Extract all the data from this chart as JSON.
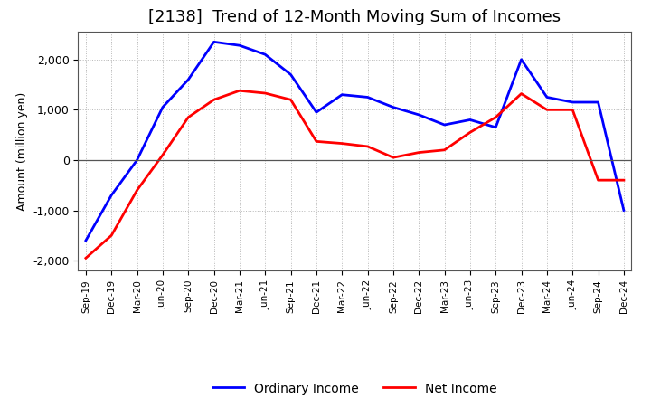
{
  "title": "[2138]  Trend of 12-Month Moving Sum of Incomes",
  "ylabel": "Amount (million yen)",
  "x_labels": [
    "Sep-19",
    "Dec-19",
    "Mar-20",
    "Jun-20",
    "Sep-20",
    "Dec-20",
    "Mar-21",
    "Jun-21",
    "Sep-21",
    "Dec-21",
    "Mar-22",
    "Jun-22",
    "Sep-22",
    "Dec-22",
    "Mar-23",
    "Jun-23",
    "Sep-23",
    "Dec-23",
    "Mar-24",
    "Jun-24",
    "Sep-24",
    "Dec-24"
  ],
  "ordinary_income": [
    -1600,
    -700,
    0,
    1050,
    1600,
    2350,
    2280,
    2100,
    1700,
    950,
    1300,
    1250,
    1050,
    900,
    700,
    800,
    650,
    2000,
    1250,
    1150,
    1150,
    -1000
  ],
  "net_income": [
    -1950,
    -1500,
    -600,
    100,
    850,
    1200,
    1380,
    1330,
    1200,
    370,
    330,
    270,
    50,
    150,
    200,
    550,
    850,
    1320,
    1000,
    1000,
    -400,
    -400
  ],
  "ordinary_income_color": "#0000FF",
  "net_income_color": "#FF0000",
  "ylim": [
    -2200,
    2550
  ],
  "yticks": [
    -2000,
    -1000,
    0,
    1000,
    2000
  ],
  "background_color": "#ffffff",
  "grid_color": "#888888",
  "line_width": 2.0,
  "title_fontsize": 13,
  "legend_labels": [
    "Ordinary Income",
    "Net Income"
  ],
  "figsize": [
    7.2,
    4.4
  ],
  "dpi": 100
}
